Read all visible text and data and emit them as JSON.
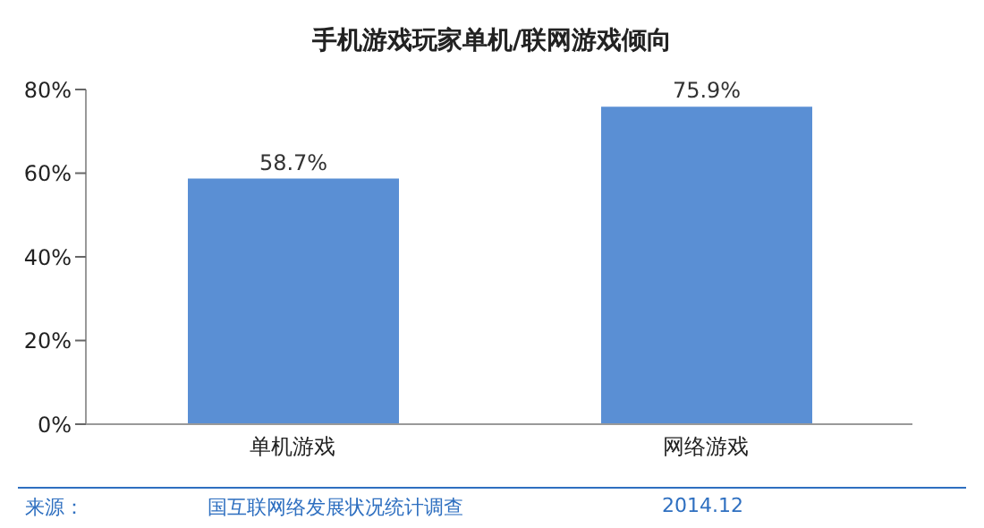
{
  "chart_data": {
    "type": "bar",
    "title": "手机游戏玩家单机/联网游戏倾向",
    "categories": [
      "单机游戏",
      "网络游戏"
    ],
    "values": [
      58.7,
      75.9
    ],
    "value_labels": [
      "58.7%",
      "75.9%"
    ],
    "color": "#5a8fd4",
    "ylim": [
      0,
      80
    ],
    "yticks": [
      {
        "value": 0,
        "label": "0%"
      },
      {
        "value": 20,
        "label": "20%"
      },
      {
        "value": 40,
        "label": "40%"
      },
      {
        "value": 60,
        "label": "60%"
      },
      {
        "value": 80,
        "label": "80%"
      }
    ],
    "grid": false,
    "annotations": [
      "来源：",
      "国互联网络发展状况统计调查",
      "2014.12"
    ]
  }
}
